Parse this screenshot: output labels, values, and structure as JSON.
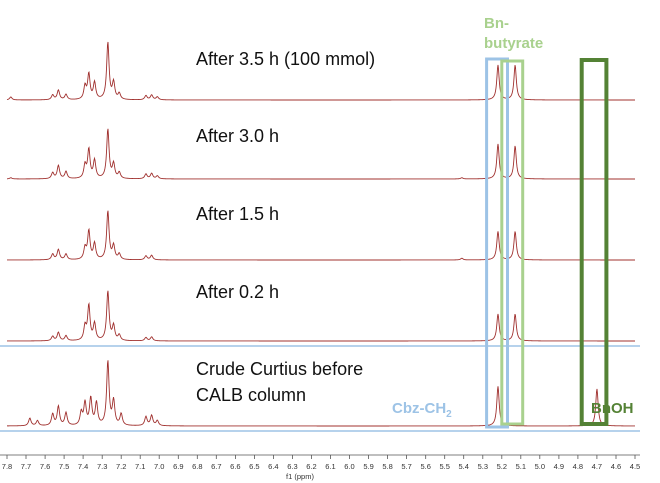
{
  "chart_data": {
    "type": "line",
    "title": "",
    "xlabel": "f1 (ppm)",
    "ylabel": "",
    "x_reversed": true,
    "xlim": [
      4.5,
      7.8
    ],
    "xticks": [
      "7.8",
      "7.7",
      "7.6",
      "7.5",
      "7.4",
      "7.3",
      "7.2",
      "7.1",
      "7.0",
      "6.9",
      "6.8",
      "6.7",
      "6.6",
      "6.5",
      "6.4",
      "6.3",
      "6.2",
      "6.1",
      "6.0",
      "5.9",
      "5.8",
      "5.7",
      "5.6",
      "5.5",
      "5.4",
      "5.3",
      "5.2",
      "5.1",
      "5.0",
      "4.9",
      "4.8",
      "4.7",
      "4.6",
      "4.5"
    ],
    "trace_color": "#a0302e",
    "series": [
      {
        "name": "After 3.5 h (100 mmol)",
        "peaks": [
          {
            "ppm": 7.78,
            "h": 0.05
          },
          {
            "ppm": 7.56,
            "h": 0.08
          },
          {
            "ppm": 7.53,
            "h": 0.16
          },
          {
            "ppm": 7.49,
            "h": 0.09
          },
          {
            "ppm": 7.39,
            "h": 0.22
          },
          {
            "ppm": 7.37,
            "h": 0.42
          },
          {
            "ppm": 7.34,
            "h": 0.28
          },
          {
            "ppm": 7.27,
            "h": 0.95
          },
          {
            "ppm": 7.24,
            "h": 0.28
          },
          {
            "ppm": 7.21,
            "h": 0.1
          },
          {
            "ppm": 7.07,
            "h": 0.07
          },
          {
            "ppm": 7.04,
            "h": 0.08
          },
          {
            "ppm": 7.01,
            "h": 0.05
          },
          {
            "ppm": 5.22,
            "h": 0.58
          },
          {
            "ppm": 5.13,
            "h": 0.58
          }
        ]
      },
      {
        "name": "After 3.0 h",
        "peaks": [
          {
            "ppm": 7.78,
            "h": 0.02
          },
          {
            "ppm": 7.56,
            "h": 0.1
          },
          {
            "ppm": 7.53,
            "h": 0.22
          },
          {
            "ppm": 7.49,
            "h": 0.12
          },
          {
            "ppm": 7.39,
            "h": 0.22
          },
          {
            "ppm": 7.37,
            "h": 0.48
          },
          {
            "ppm": 7.34,
            "h": 0.3
          },
          {
            "ppm": 7.27,
            "h": 0.82
          },
          {
            "ppm": 7.24,
            "h": 0.24
          },
          {
            "ppm": 7.21,
            "h": 0.1
          },
          {
            "ppm": 7.07,
            "h": 0.08
          },
          {
            "ppm": 7.04,
            "h": 0.09
          },
          {
            "ppm": 7.01,
            "h": 0.05
          },
          {
            "ppm": 5.41,
            "h": 0.02
          },
          {
            "ppm": 5.22,
            "h": 0.58
          },
          {
            "ppm": 5.13,
            "h": 0.55
          }
        ]
      },
      {
        "name": "After 1.5 h",
        "peaks": [
          {
            "ppm": 7.56,
            "h": 0.1
          },
          {
            "ppm": 7.53,
            "h": 0.18
          },
          {
            "ppm": 7.49,
            "h": 0.1
          },
          {
            "ppm": 7.39,
            "h": 0.2
          },
          {
            "ppm": 7.37,
            "h": 0.5
          },
          {
            "ppm": 7.34,
            "h": 0.28
          },
          {
            "ppm": 7.27,
            "h": 0.85
          },
          {
            "ppm": 7.24,
            "h": 0.24
          },
          {
            "ppm": 7.21,
            "h": 0.1
          },
          {
            "ppm": 7.07,
            "h": 0.07
          },
          {
            "ppm": 7.04,
            "h": 0.08
          },
          {
            "ppm": 5.41,
            "h": 0.03
          },
          {
            "ppm": 5.22,
            "h": 0.5
          },
          {
            "ppm": 5.13,
            "h": 0.5
          }
        ]
      },
      {
        "name": "After 0.2 h",
        "peaks": [
          {
            "ppm": 7.56,
            "h": 0.08
          },
          {
            "ppm": 7.53,
            "h": 0.15
          },
          {
            "ppm": 7.49,
            "h": 0.09
          },
          {
            "ppm": 7.39,
            "h": 0.25
          },
          {
            "ppm": 7.37,
            "h": 0.62
          },
          {
            "ppm": 7.34,
            "h": 0.3
          },
          {
            "ppm": 7.27,
            "h": 0.88
          },
          {
            "ppm": 7.24,
            "h": 0.26
          },
          {
            "ppm": 7.21,
            "h": 0.1
          },
          {
            "ppm": 7.07,
            "h": 0.06
          },
          {
            "ppm": 7.04,
            "h": 0.07
          },
          {
            "ppm": 5.22,
            "h": 0.48
          },
          {
            "ppm": 5.13,
            "h": 0.48
          }
        ]
      },
      {
        "name": "Crude Curtius before CALB column",
        "peaks": [
          {
            "ppm": 7.68,
            "h": 0.12
          },
          {
            "ppm": 7.64,
            "h": 0.08
          },
          {
            "ppm": 7.56,
            "h": 0.18
          },
          {
            "ppm": 7.53,
            "h": 0.3
          },
          {
            "ppm": 7.49,
            "h": 0.2
          },
          {
            "ppm": 7.41,
            "h": 0.2
          },
          {
            "ppm": 7.39,
            "h": 0.35
          },
          {
            "ppm": 7.36,
            "h": 0.42
          },
          {
            "ppm": 7.33,
            "h": 0.35
          },
          {
            "ppm": 7.27,
            "h": 1.0
          },
          {
            "ppm": 7.24,
            "h": 0.38
          },
          {
            "ppm": 7.2,
            "h": 0.18
          },
          {
            "ppm": 7.07,
            "h": 0.14
          },
          {
            "ppm": 7.04,
            "h": 0.16
          },
          {
            "ppm": 7.01,
            "h": 0.08
          },
          {
            "ppm": 5.22,
            "h": 0.62
          },
          {
            "ppm": 4.7,
            "h": 0.58
          }
        ]
      }
    ],
    "highlights": [
      {
        "label": "Cbz-CH",
        "subscript": "2",
        "ppm_range": [
          5.17,
          5.28
        ],
        "color": "#9dc3e6"
      },
      {
        "label": "Bn-butyrate",
        "label_lines": [
          "Bn-",
          "butyrate"
        ],
        "ppm_range": [
          5.09,
          5.2
        ],
        "color": "#a9d18e"
      },
      {
        "label": "BnOH",
        "ppm_range": [
          4.65,
          4.78
        ],
        "color": "#548235"
      }
    ],
    "separator_color": "#9dc3e6"
  }
}
